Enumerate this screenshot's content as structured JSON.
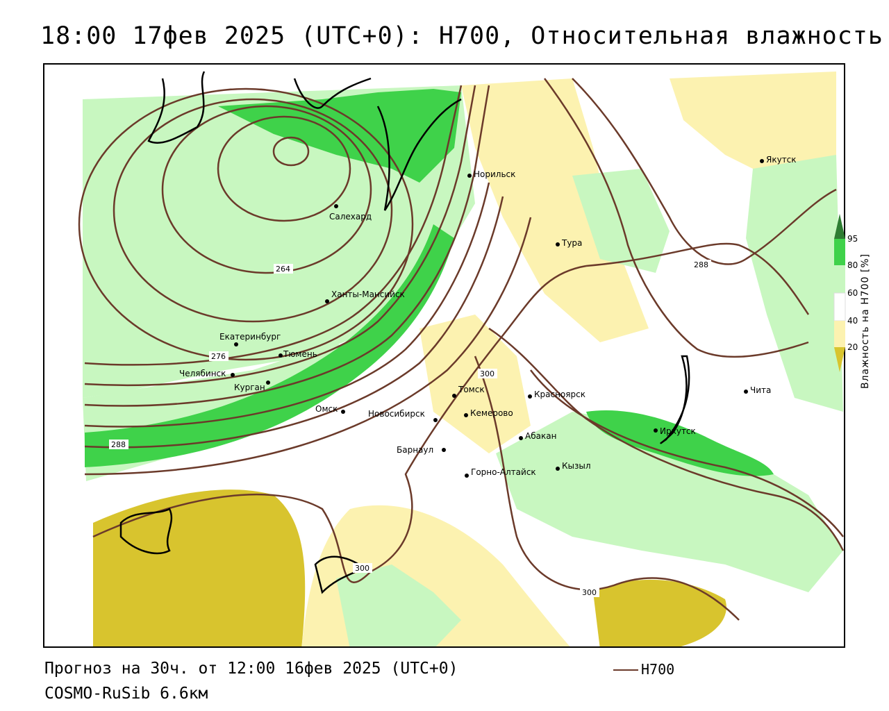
{
  "header": {
    "title": "18:00 17фев 2025 (UTC+0): H700, Относительная влажность"
  },
  "footer": {
    "forecast": "Прогноз на 30ч. от 12:00 16фев 2025 (UTC+0)",
    "model": "COSMO-RuSib 6.6км"
  },
  "legend": {
    "line_label": "H700",
    "line_color": "#6b3a2a"
  },
  "colorbar": {
    "title": "Влажность на H700 [%]",
    "ticks": [
      "95",
      "80",
      "60",
      "40",
      "20"
    ],
    "colors": {
      "c95": "#2e7d32",
      "c80": "#3fd24a",
      "c60": "#c8f7c0",
      "c40": "#ffffff",
      "c20": "#fcf2b0",
      "c0": "#d8c42e"
    }
  },
  "contours": {
    "labels": [
      "264",
      "276",
      "288",
      "300",
      "300",
      "300",
      "288"
    ]
  },
  "cities": [
    {
      "name": "Салехард"
    },
    {
      "name": "Норильск"
    },
    {
      "name": "Якутск"
    },
    {
      "name": "Тура"
    },
    {
      "name": "Ханты-Мансийск"
    },
    {
      "name": "Екатеринбург"
    },
    {
      "name": "Тюмень"
    },
    {
      "name": "Челябинск"
    },
    {
      "name": "Курган"
    },
    {
      "name": "Омск"
    },
    {
      "name": "Новосибирск"
    },
    {
      "name": "Томск"
    },
    {
      "name": "Кемерово"
    },
    {
      "name": "Красноярск"
    },
    {
      "name": "Абакан"
    },
    {
      "name": "Барнаул"
    },
    {
      "name": "Горно-Алтайск"
    },
    {
      "name": "Кызыл"
    },
    {
      "name": "Иркутск"
    },
    {
      "name": "Чита"
    }
  ]
}
